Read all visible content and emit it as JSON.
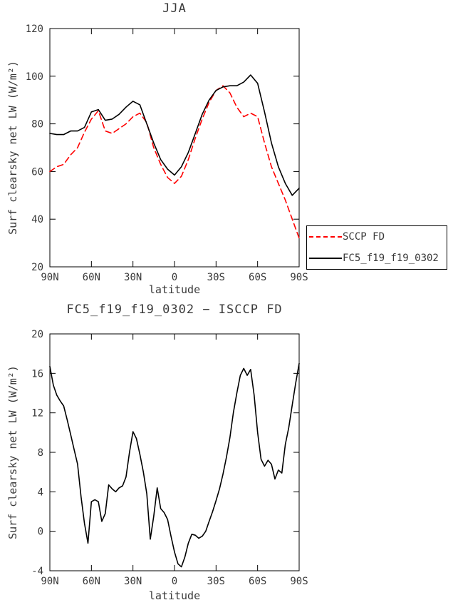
{
  "page": {
    "background": "#ffffff"
  },
  "colors": {
    "axis": "#000000",
    "text": "#3a3a3a",
    "series_red": "#ff0000",
    "series_black": "#000000"
  },
  "chart_data": [
    {
      "type": "line",
      "title": "JJA",
      "xlabel": "latitude",
      "ylabel": "Surf clearsky net LW (W/m²)",
      "xlim": [
        90,
        -90
      ],
      "ylim": [
        20,
        120
      ],
      "grid": false,
      "legend_position": "outside-right-bottom",
      "xticks": [
        {
          "value": 90,
          "label": "90N"
        },
        {
          "value": 60,
          "label": "60N"
        },
        {
          "value": 30,
          "label": "30N"
        },
        {
          "value": 0,
          "label": "0"
        },
        {
          "value": -30,
          "label": "30S"
        },
        {
          "value": -60,
          "label": "60S"
        },
        {
          "value": -90,
          "label": "90S"
        }
      ],
      "yticks": [
        {
          "value": 120,
          "label": "120"
        },
        {
          "value": 100,
          "label": "100"
        },
        {
          "value": 80,
          "label": "80"
        },
        {
          "value": 60,
          "label": "60"
        },
        {
          "value": 40,
          "label": "40"
        },
        {
          "value": 20,
          "label": "20"
        }
      ],
      "x": [
        90,
        85,
        80,
        75,
        70,
        65,
        60,
        55,
        50,
        45,
        40,
        35,
        30,
        25,
        20,
        15,
        10,
        5,
        0,
        -5,
        -10,
        -15,
        -20,
        -25,
        -30,
        -35,
        -40,
        -45,
        -50,
        -55,
        -60,
        -65,
        -70,
        -75,
        -80,
        -85,
        -90
      ],
      "series": [
        {
          "name": "SCCP FD",
          "color": "#ff0000",
          "dash": true,
          "values": [
            60,
            62,
            63,
            67,
            70,
            76.5,
            82,
            85.5,
            77,
            76,
            78,
            80,
            83,
            84.5,
            80.5,
            70,
            63,
            57.5,
            55,
            58,
            65,
            74,
            82,
            89,
            94,
            96,
            93,
            87,
            83,
            84.5,
            83,
            72,
            62,
            55,
            48,
            40,
            32
          ]
        },
        {
          "name": "FC5_f19_f19_0302",
          "color": "#000000",
          "dash": false,
          "values": [
            76,
            75.5,
            75.5,
            77,
            77,
            78.5,
            85,
            86,
            81.5,
            82,
            84,
            87,
            89.5,
            88,
            80,
            72,
            65,
            61,
            58.5,
            62,
            68,
            76,
            84,
            90,
            94,
            95.5,
            96,
            96,
            97.5,
            100.5,
            97,
            85,
            72,
            62,
            55,
            50,
            53
          ]
        }
      ],
      "legend": {
        "entries": [
          {
            "label": "SCCP FD",
            "color": "#ff0000",
            "dash": true
          },
          {
            "label": "FC5_f19_f19_0302",
            "color": "#000000",
            "dash": false
          }
        ]
      }
    },
    {
      "type": "line",
      "title": "FC5_f19_f19_0302 − ISCCP FD",
      "xlabel": "latitude",
      "ylabel": "Surf clearsky net LW (W/m²)",
      "xlim": [
        90,
        -90
      ],
      "ylim": [
        -4,
        20
      ],
      "grid": false,
      "xticks": [
        {
          "value": 90,
          "label": "90N"
        },
        {
          "value": 60,
          "label": "60N"
        },
        {
          "value": 30,
          "label": "30N"
        },
        {
          "value": 0,
          "label": "0"
        },
        {
          "value": -30,
          "label": "30S"
        },
        {
          "value": -60,
          "label": "60S"
        },
        {
          "value": -90,
          "label": "90S"
        }
      ],
      "yticks": [
        {
          "value": 20,
          "label": "20"
        },
        {
          "value": 16,
          "label": "16"
        },
        {
          "value": 12,
          "label": "12"
        },
        {
          "value": 8,
          "label": "8"
        },
        {
          "value": 4,
          "label": "4"
        },
        {
          "value": 0,
          "label": "0"
        },
        {
          "value": -4,
          "label": "-4"
        }
      ],
      "x": [
        90,
        87.5,
        85,
        82.5,
        80,
        77.5,
        75,
        72.5,
        70,
        67.5,
        65,
        62.5,
        60,
        57.5,
        55,
        52.5,
        50,
        47.5,
        45,
        42.5,
        40,
        37.5,
        35,
        32.5,
        30,
        27.5,
        25,
        22.5,
        20,
        17.5,
        15,
        12.5,
        10,
        7.5,
        5,
        2.5,
        0,
        -2.5,
        -5,
        -7.5,
        -10,
        -12.5,
        -15,
        -17.5,
        -20,
        -22.5,
        -25,
        -27.5,
        -30,
        -32.5,
        -35,
        -37.5,
        -40,
        -42.5,
        -45,
        -47.5,
        -50,
        -52.5,
        -55,
        -57.5,
        -60,
        -62.5,
        -65,
        -67.5,
        -70,
        -72.5,
        -75,
        -77.5,
        -80,
        -82.5,
        -85,
        -87.5,
        -90
      ],
      "series": [
        {
          "name": "FC5_f19_f19_0302 − ISCCP FD",
          "color": "#000000",
          "dash": false,
          "values": [
            16.7,
            14.8,
            13.8,
            13.2,
            12.7,
            11.3,
            9.8,
            8.3,
            6.8,
            3.5,
            0.8,
            -1.2,
            3.0,
            3.2,
            3.0,
            1.0,
            1.8,
            4.7,
            4.3,
            4.0,
            4.4,
            4.6,
            5.5,
            8.0,
            10.1,
            9.4,
            7.8,
            6.0,
            3.8,
            -0.8,
            1.5,
            4.4,
            2.3,
            1.9,
            1.2,
            -0.5,
            -2.1,
            -3.3,
            -3.6,
            -2.6,
            -1.2,
            -0.3,
            -0.4,
            -0.7,
            -0.5,
            0.0,
            1.0,
            2.0,
            3.1,
            4.3,
            5.8,
            7.5,
            9.5,
            12.0,
            14.0,
            15.8,
            16.5,
            15.8,
            16.4,
            13.8,
            10.0,
            7.3,
            6.6,
            7.2,
            6.8,
            5.3,
            6.2,
            5.9,
            8.8,
            10.5,
            12.8,
            15.0,
            17.0
          ]
        }
      ]
    }
  ]
}
